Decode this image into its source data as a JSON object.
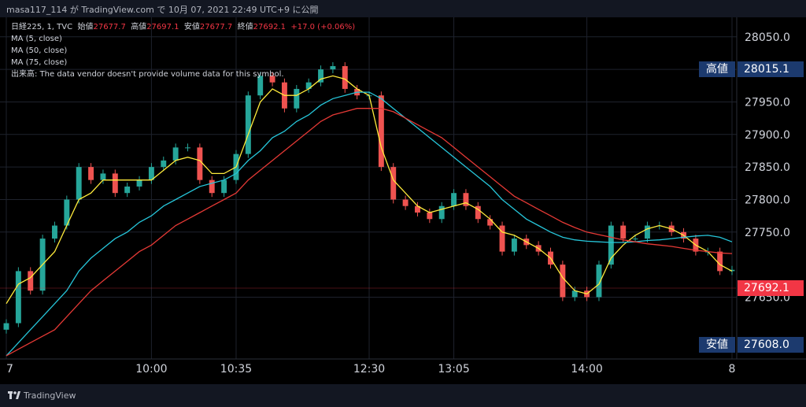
{
  "header": {
    "attribution": "masa117_114 が TradingView.com で 10月 07, 2021 22:49 UTC+9 に公開"
  },
  "legend": {
    "symbol": "日経225, 1, TVC",
    "open_label": "始値",
    "open": "27677.7",
    "high_label": "高値",
    "high": "27697.1",
    "low_label": "安値",
    "low": "27677.7",
    "close_label": "終値",
    "close": "27692.1",
    "change": "+17.0 (+0.06%)",
    "ma": [
      "MA (5, close)",
      "MA (50, close)",
      "MA (75, close)"
    ],
    "volume_label": "出来高:",
    "volume_note": "The data vendor doesn't provide volume data for this symbol."
  },
  "price_tags": {
    "high": {
      "label": "高値",
      "value": "28015.1"
    },
    "last": {
      "value": "27692.1"
    },
    "low": {
      "label": "安値",
      "value": "27608.0"
    }
  },
  "footer": {
    "brand": "TradingView"
  },
  "colors": {
    "background": "#000000",
    "grid": "#1e222d",
    "up": "#26a69a",
    "down": "#ef5350",
    "ma5": "#ffeb3b",
    "ma50": "#26c6da",
    "ma75": "#e53935",
    "tag_bg": "#1c3a6e",
    "last_bg": "#f23645"
  },
  "chart_data": {
    "type": "candlestick",
    "symbol": "日経225",
    "y_ticks": [
      28050,
      28000,
      27950,
      27900,
      27850,
      27800,
      27750,
      27650
    ],
    "y_range": [
      27555,
      28080
    ],
    "x_tick_labels": [
      "7",
      "10:00",
      "10:35",
      "12:30",
      "13:05",
      "14:00",
      "8"
    ],
    "x_tick_times": [
      "09:00",
      "10:00",
      "10:35",
      "12:30",
      "13:05",
      "14:00",
      "15:00"
    ],
    "session_high": 28015.1,
    "session_low": 27608.0,
    "last_price": 27692.1,
    "close_series": {
      "times": [
        "09:00",
        "09:05",
        "09:10",
        "09:15",
        "09:20",
        "09:25",
        "09:30",
        "09:35",
        "09:40",
        "09:45",
        "09:50",
        "09:55",
        "10:00",
        "10:05",
        "10:10",
        "10:15",
        "10:20",
        "10:25",
        "10:30",
        "10:35",
        "10:40",
        "10:45",
        "10:50",
        "10:55",
        "11:00",
        "11:05",
        "11:10",
        "11:15",
        "11:20",
        "11:25",
        "12:30",
        "12:35",
        "12:40",
        "12:45",
        "12:50",
        "12:55",
        "13:00",
        "13:05",
        "13:10",
        "13:15",
        "13:20",
        "13:25",
        "13:30",
        "13:35",
        "13:40",
        "13:45",
        "13:50",
        "13:55",
        "14:00",
        "14:05",
        "14:10",
        "14:15",
        "14:20",
        "14:25",
        "14:30",
        "14:35",
        "14:40",
        "14:45",
        "14:50",
        "14:55",
        "15:00"
      ],
      "values": [
        27610,
        27690,
        27660,
        27740,
        27760,
        27800,
        27850,
        27830,
        27840,
        27810,
        27820,
        27830,
        27850,
        27860,
        27880,
        27880,
        27830,
        27810,
        27830,
        27870,
        27960,
        27990,
        27980,
        27940,
        27970,
        27980,
        28000,
        28005,
        27970,
        27960,
        27960,
        27850,
        27800,
        27790,
        27780,
        27770,
        27790,
        27810,
        27790,
        27770,
        27760,
        27720,
        27740,
        27730,
        27720,
        27700,
        27650,
        27660,
        27650,
        27700,
        27760,
        27740,
        27740,
        27760,
        27760,
        27750,
        27740,
        27720,
        27720,
        27690,
        27692
      ]
    },
    "ma_series": [
      {
        "name": "MA (5, close)",
        "color": "#ffeb3b",
        "values": [
          27640,
          27670,
          27680,
          27700,
          27720,
          27760,
          27800,
          27810,
          27830,
          27830,
          27830,
          27830,
          27830,
          27845,
          27860,
          27865,
          27860,
          27840,
          27840,
          27850,
          27900,
          27950,
          27970,
          27960,
          27960,
          27970,
          27985,
          27990,
          27985,
          27970,
          27960,
          27880,
          27830,
          27810,
          27790,
          27780,
          27785,
          27790,
          27795,
          27785,
          27770,
          27750,
          27745,
          27735,
          27725,
          27710,
          27680,
          27660,
          27655,
          27670,
          27710,
          27730,
          27745,
          27755,
          27760,
          27755,
          27745,
          27730,
          27720,
          27700,
          27690
        ]
      },
      {
        "name": "MA (50, close)",
        "color": "#26c6da",
        "values": [
          27560,
          27580,
          27600,
          27620,
          27640,
          27660,
          27690,
          27710,
          27725,
          27740,
          27750,
          27765,
          27775,
          27790,
          27800,
          27810,
          27820,
          27825,
          27830,
          27840,
          27860,
          27875,
          27895,
          27905,
          27920,
          27930,
          27945,
          27955,
          27960,
          27965,
          27965,
          27955,
          27940,
          27925,
          27910,
          27895,
          27880,
          27865,
          27850,
          27835,
          27820,
          27800,
          27785,
          27770,
          27760,
          27750,
          27742,
          27738,
          27736,
          27735,
          27734,
          27734,
          27735,
          27737,
          27738,
          27740,
          27742,
          27744,
          27745,
          27742,
          27735
        ]
      },
      {
        "name": "MA (75, close)",
        "color": "#e53935",
        "values": [
          27560,
          27570,
          27580,
          27590,
          27600,
          27620,
          27640,
          27660,
          27675,
          27690,
          27705,
          27720,
          27730,
          27745,
          27760,
          27770,
          27780,
          27790,
          27800,
          27810,
          27830,
          27845,
          27860,
          27875,
          27890,
          27905,
          27920,
          27930,
          27935,
          27940,
          27940,
          27940,
          27935,
          27925,
          27915,
          27905,
          27895,
          27880,
          27865,
          27850,
          27835,
          27820,
          27805,
          27795,
          27785,
          27775,
          27765,
          27757,
          27750,
          27746,
          27742,
          27738,
          27735,
          27732,
          27730,
          27728,
          27725,
          27722,
          27720,
          27718,
          27717
        ]
      }
    ]
  }
}
